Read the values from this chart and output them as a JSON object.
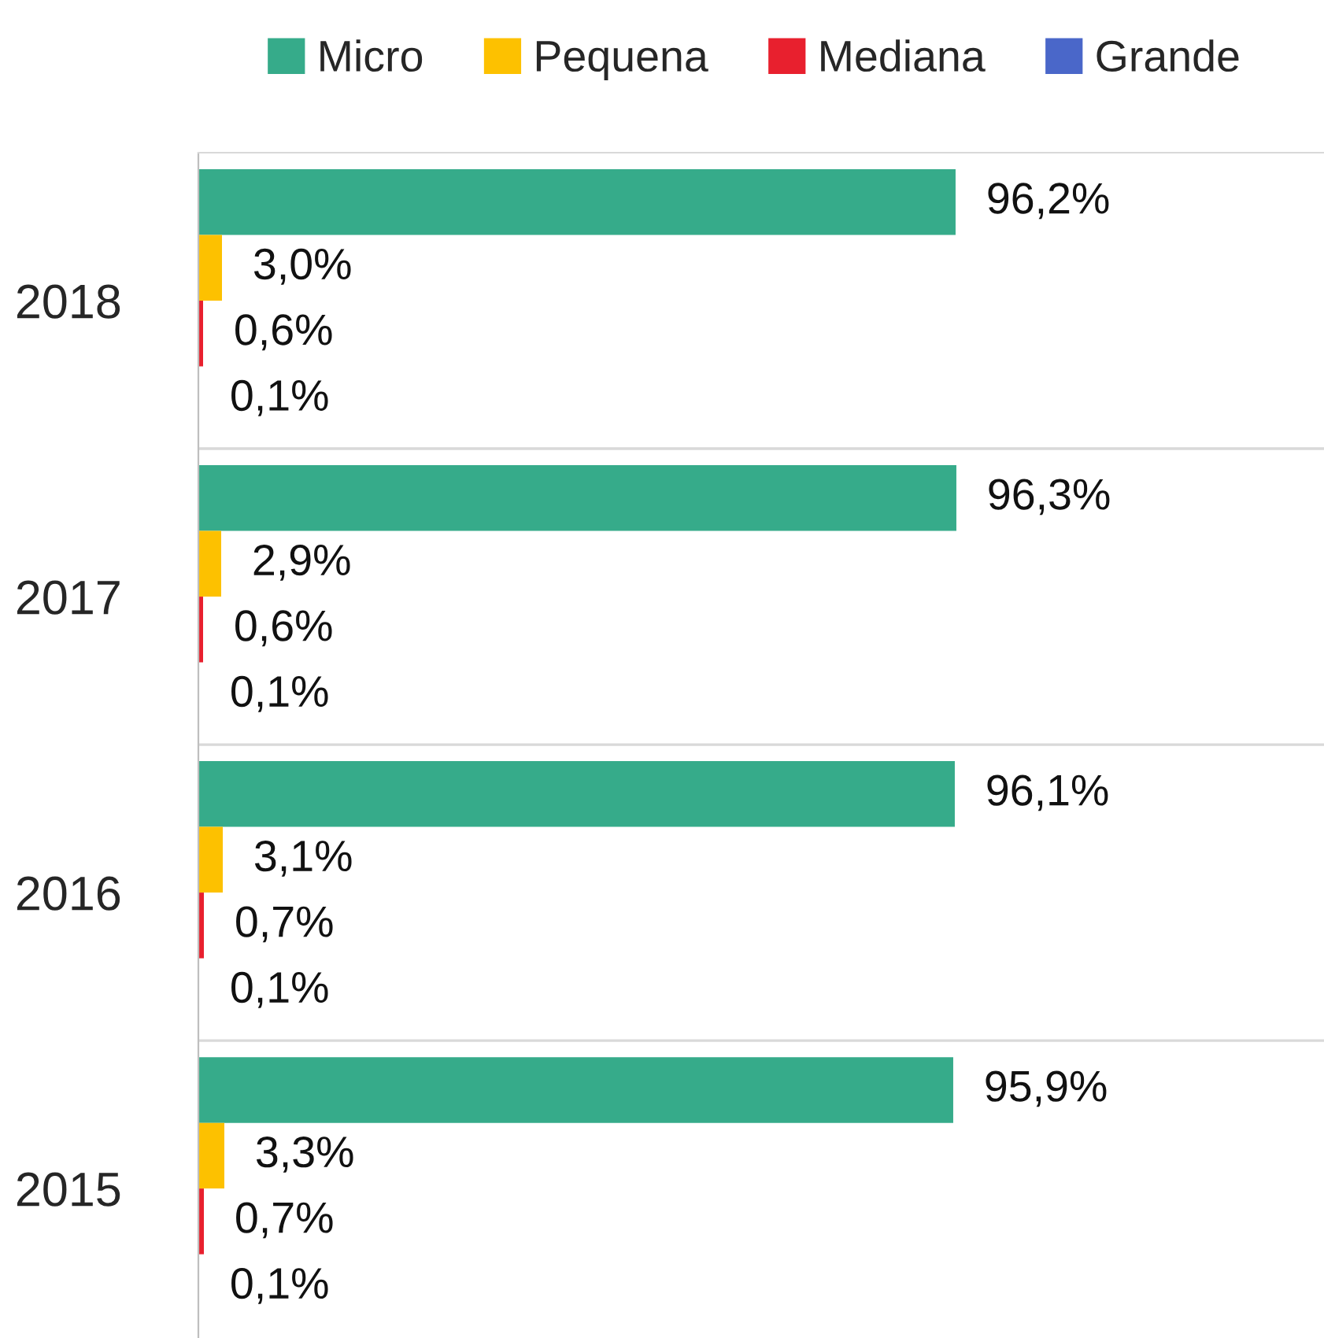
{
  "chart_data": {
    "type": "bar",
    "orientation": "horizontal",
    "categories": [
      "2018",
      "2017",
      "2016",
      "2015"
    ],
    "series": [
      {
        "name": "Micro",
        "color": "#36ab8a",
        "values": [
          96.2,
          96.3,
          96.1,
          95.9
        ],
        "value_labels": [
          "96,2%",
          "96,3%",
          "96,1%",
          "95,9%"
        ]
      },
      {
        "name": "Pequena",
        "color": "#fdc100",
        "values": [
          3.0,
          2.9,
          3.1,
          3.3
        ],
        "value_labels": [
          "3,0%",
          "2,9%",
          "3,1%",
          "3,3%"
        ]
      },
      {
        "name": "Mediana",
        "color": "#e8202e",
        "values": [
          0.6,
          0.6,
          0.7,
          0.7
        ],
        "value_labels": [
          "0,6%",
          "0,6%",
          "0,7%",
          "0,7%"
        ]
      },
      {
        "name": "Grande",
        "color": "#4a67c9",
        "values": [
          0.1,
          0.1,
          0.1,
          0.1
        ],
        "value_labels": [
          "0,1%",
          "0,1%",
          "0,1%",
          "0,1%"
        ]
      }
    ],
    "grid": "y",
    "legend": "top",
    "tick_labels": "y"
  }
}
